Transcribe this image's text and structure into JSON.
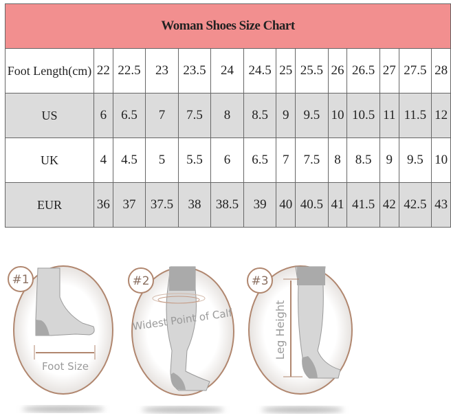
{
  "title": "Woman Shoes Size Chart",
  "colors": {
    "header_bg": "#f28f8f",
    "title": "#c0111a",
    "grey_row": "#dcdcdc",
    "ring": "#b0866e"
  },
  "rows": [
    {
      "label": "Foot Length(cm)",
      "values": [
        "22",
        "22.5",
        "23",
        "23.5",
        "24",
        "24.5",
        "25",
        "25.5",
        "26",
        "26.5",
        "27",
        "27.5",
        "28"
      ]
    },
    {
      "label": "US",
      "values": [
        "6",
        "6.5",
        "7",
        "7.5",
        "8",
        "8.5",
        "9",
        "9.5",
        "10",
        "10.5",
        "11",
        "11.5",
        "12"
      ]
    },
    {
      "label": "UK",
      "values": [
        "4",
        "4.5",
        "5",
        "5.5",
        "6",
        "6.5",
        "7",
        "7.5",
        "8",
        "8.5",
        "9",
        "9.5",
        "10"
      ]
    },
    {
      "label": "EUR",
      "values": [
        "36",
        "37",
        "37.5",
        "38",
        "38.5",
        "39",
        "40",
        "40.5",
        "41",
        "41.5",
        "42",
        "42.5",
        "43"
      ]
    }
  ],
  "guides": [
    {
      "badge": "#1",
      "caption": "Foot Size"
    },
    {
      "badge": "#2",
      "caption": "Widest Point of Calf"
    },
    {
      "badge": "#3",
      "caption": "Leg Height"
    }
  ]
}
